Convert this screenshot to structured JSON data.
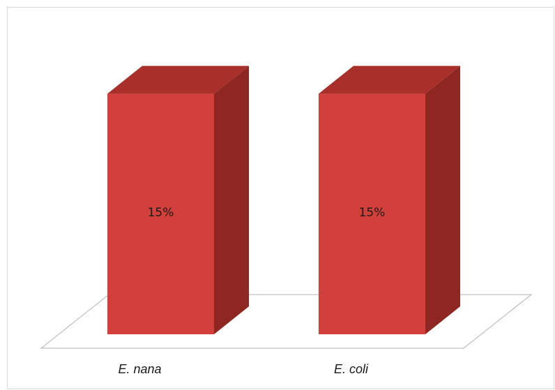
{
  "chart_data": {
    "type": "bar",
    "categories": [
      "E. nana",
      "E. coli"
    ],
    "values": [
      15,
      15
    ],
    "data_labels": [
      "15%",
      "15%"
    ],
    "title": "",
    "xlabel": "",
    "ylabel": "",
    "ylim": [
      0,
      17.5
    ],
    "grid": false,
    "legend": "none",
    "style": "3d-column",
    "colors": {
      "front": "#d1403b",
      "top": "#a82f2a",
      "side": "#8e2722",
      "floor_stroke": "#bfbfbf",
      "frame": "#d9d9d9"
    }
  }
}
